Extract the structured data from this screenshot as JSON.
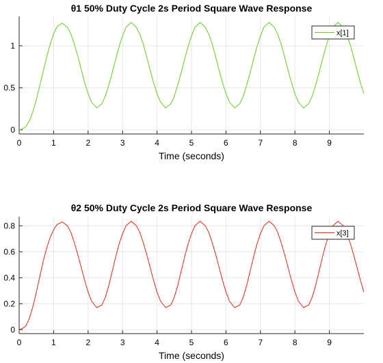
{
  "chart_data": [
    {
      "type": "line",
      "title": "θ1 50% Duty Cycle 2s Period Square Wave Response",
      "xlabel": "Time (seconds)",
      "ylabel": "",
      "xlim": [
        0,
        10
      ],
      "ylim": [
        -0.05,
        1.35
      ],
      "xticks": [
        0,
        1,
        2,
        3,
        4,
        5,
        6,
        7,
        8,
        9
      ],
      "yticks": [
        0,
        0.5,
        1
      ],
      "ytick_labels": [
        "0",
        "0.5",
        "1"
      ],
      "grid": true,
      "legend_position": "top-right",
      "series": [
        {
          "name": "x[1]",
          "color": "#66cc22",
          "x": [
            0,
            0.1,
            0.2,
            0.3,
            0.4,
            0.5,
            0.6,
            0.7,
            0.8,
            0.9,
            1.0,
            1.1,
            1.25,
            1.4,
            1.5,
            1.6,
            1.7,
            1.8,
            1.9,
            2.0,
            2.1,
            2.25,
            2.4,
            2.5,
            2.6,
            2.7,
            2.8,
            2.9,
            3.0,
            3.1,
            3.25,
            3.4,
            3.5,
            3.6,
            3.7,
            3.8,
            3.9,
            4.0,
            4.1,
            4.25,
            4.4,
            4.5,
            4.6,
            4.7,
            4.8,
            4.9,
            5.0,
            5.1,
            5.25,
            5.4,
            5.5,
            5.6,
            5.7,
            5.8,
            5.9,
            6.0,
            6.1,
            6.25,
            6.4,
            6.5,
            6.6,
            6.7,
            6.8,
            6.9,
            7.0,
            7.1,
            7.25,
            7.4,
            7.5,
            7.6,
            7.7,
            7.8,
            7.9,
            8.0,
            8.1,
            8.25,
            8.4,
            8.5,
            8.6,
            8.7,
            8.8,
            8.9,
            9.0,
            9.1,
            9.25,
            9.4,
            9.5,
            9.6,
            9.7,
            9.8,
            9.9,
            10.0
          ],
          "y": [
            0,
            0.01,
            0.04,
            0.11,
            0.22,
            0.36,
            0.53,
            0.7,
            0.87,
            1.02,
            1.14,
            1.23,
            1.27,
            1.22,
            1.14,
            1.02,
            0.88,
            0.72,
            0.56,
            0.43,
            0.33,
            0.26,
            0.31,
            0.4,
            0.53,
            0.68,
            0.84,
            0.99,
            1.12,
            1.22,
            1.28,
            1.22,
            1.14,
            1.02,
            0.87,
            0.71,
            0.56,
            0.43,
            0.33,
            0.26,
            0.31,
            0.4,
            0.53,
            0.68,
            0.84,
            0.99,
            1.12,
            1.22,
            1.28,
            1.22,
            1.14,
            1.02,
            0.87,
            0.71,
            0.56,
            0.43,
            0.33,
            0.26,
            0.31,
            0.4,
            0.53,
            0.68,
            0.84,
            0.99,
            1.12,
            1.22,
            1.28,
            1.22,
            1.14,
            1.02,
            0.87,
            0.71,
            0.56,
            0.43,
            0.33,
            0.26,
            0.31,
            0.4,
            0.53,
            0.68,
            0.84,
            0.99,
            1.12,
            1.22,
            1.28,
            1.22,
            1.14,
            1.02,
            0.87,
            0.71,
            0.56,
            0.43
          ]
        }
      ]
    },
    {
      "type": "line",
      "title": "θ2 50% Duty Cycle 2s Period Square Wave Response",
      "xlabel": "Time (seconds)",
      "ylabel": "",
      "xlim": [
        0,
        10
      ],
      "ylim": [
        -0.03,
        0.87
      ],
      "xticks": [
        0,
        1,
        2,
        3,
        4,
        5,
        6,
        7,
        8,
        9
      ],
      "yticks": [
        0,
        0.2,
        0.4,
        0.6,
        0.8
      ],
      "ytick_labels": [
        "0",
        "0.2",
        "0.4",
        "0.6",
        "0.8"
      ],
      "grid": true,
      "legend_position": "top-right",
      "series": [
        {
          "name": "x[3]",
          "color": "#ee2211",
          "x": [
            0,
            0.1,
            0.2,
            0.3,
            0.4,
            0.5,
            0.6,
            0.7,
            0.8,
            0.9,
            1.0,
            1.1,
            1.25,
            1.4,
            1.5,
            1.6,
            1.7,
            1.8,
            1.9,
            2.0,
            2.1,
            2.25,
            2.4,
            2.5,
            2.6,
            2.7,
            2.8,
            2.9,
            3.0,
            3.1,
            3.25,
            3.4,
            3.5,
            3.6,
            3.7,
            3.8,
            3.9,
            4.0,
            4.1,
            4.25,
            4.4,
            4.5,
            4.6,
            4.7,
            4.8,
            4.9,
            5.0,
            5.1,
            5.25,
            5.4,
            5.5,
            5.6,
            5.7,
            5.8,
            5.9,
            6.0,
            6.1,
            6.25,
            6.4,
            6.5,
            6.6,
            6.7,
            6.8,
            6.9,
            7.0,
            7.1,
            7.25,
            7.4,
            7.5,
            7.6,
            7.7,
            7.8,
            7.9,
            8.0,
            8.1,
            8.25,
            8.4,
            8.5,
            8.6,
            8.7,
            8.8,
            8.9,
            9.0,
            9.1,
            9.25,
            9.4,
            9.5,
            9.6,
            9.7,
            9.8,
            9.9,
            10.0
          ],
          "y": [
            0,
            0.01,
            0.03,
            0.09,
            0.18,
            0.29,
            0.41,
            0.53,
            0.63,
            0.71,
            0.77,
            0.81,
            0.83,
            0.8,
            0.75,
            0.67,
            0.58,
            0.48,
            0.38,
            0.29,
            0.22,
            0.17,
            0.19,
            0.25,
            0.34,
            0.45,
            0.56,
            0.66,
            0.74,
            0.8,
            0.835,
            0.8,
            0.75,
            0.67,
            0.58,
            0.48,
            0.38,
            0.29,
            0.22,
            0.17,
            0.19,
            0.25,
            0.34,
            0.45,
            0.56,
            0.66,
            0.74,
            0.8,
            0.835,
            0.8,
            0.75,
            0.67,
            0.58,
            0.48,
            0.38,
            0.29,
            0.22,
            0.17,
            0.19,
            0.25,
            0.34,
            0.45,
            0.56,
            0.66,
            0.74,
            0.8,
            0.835,
            0.8,
            0.75,
            0.67,
            0.58,
            0.48,
            0.38,
            0.29,
            0.22,
            0.17,
            0.19,
            0.25,
            0.34,
            0.45,
            0.56,
            0.66,
            0.74,
            0.8,
            0.835,
            0.8,
            0.75,
            0.67,
            0.58,
            0.48,
            0.38,
            0.29
          ]
        }
      ]
    }
  ]
}
